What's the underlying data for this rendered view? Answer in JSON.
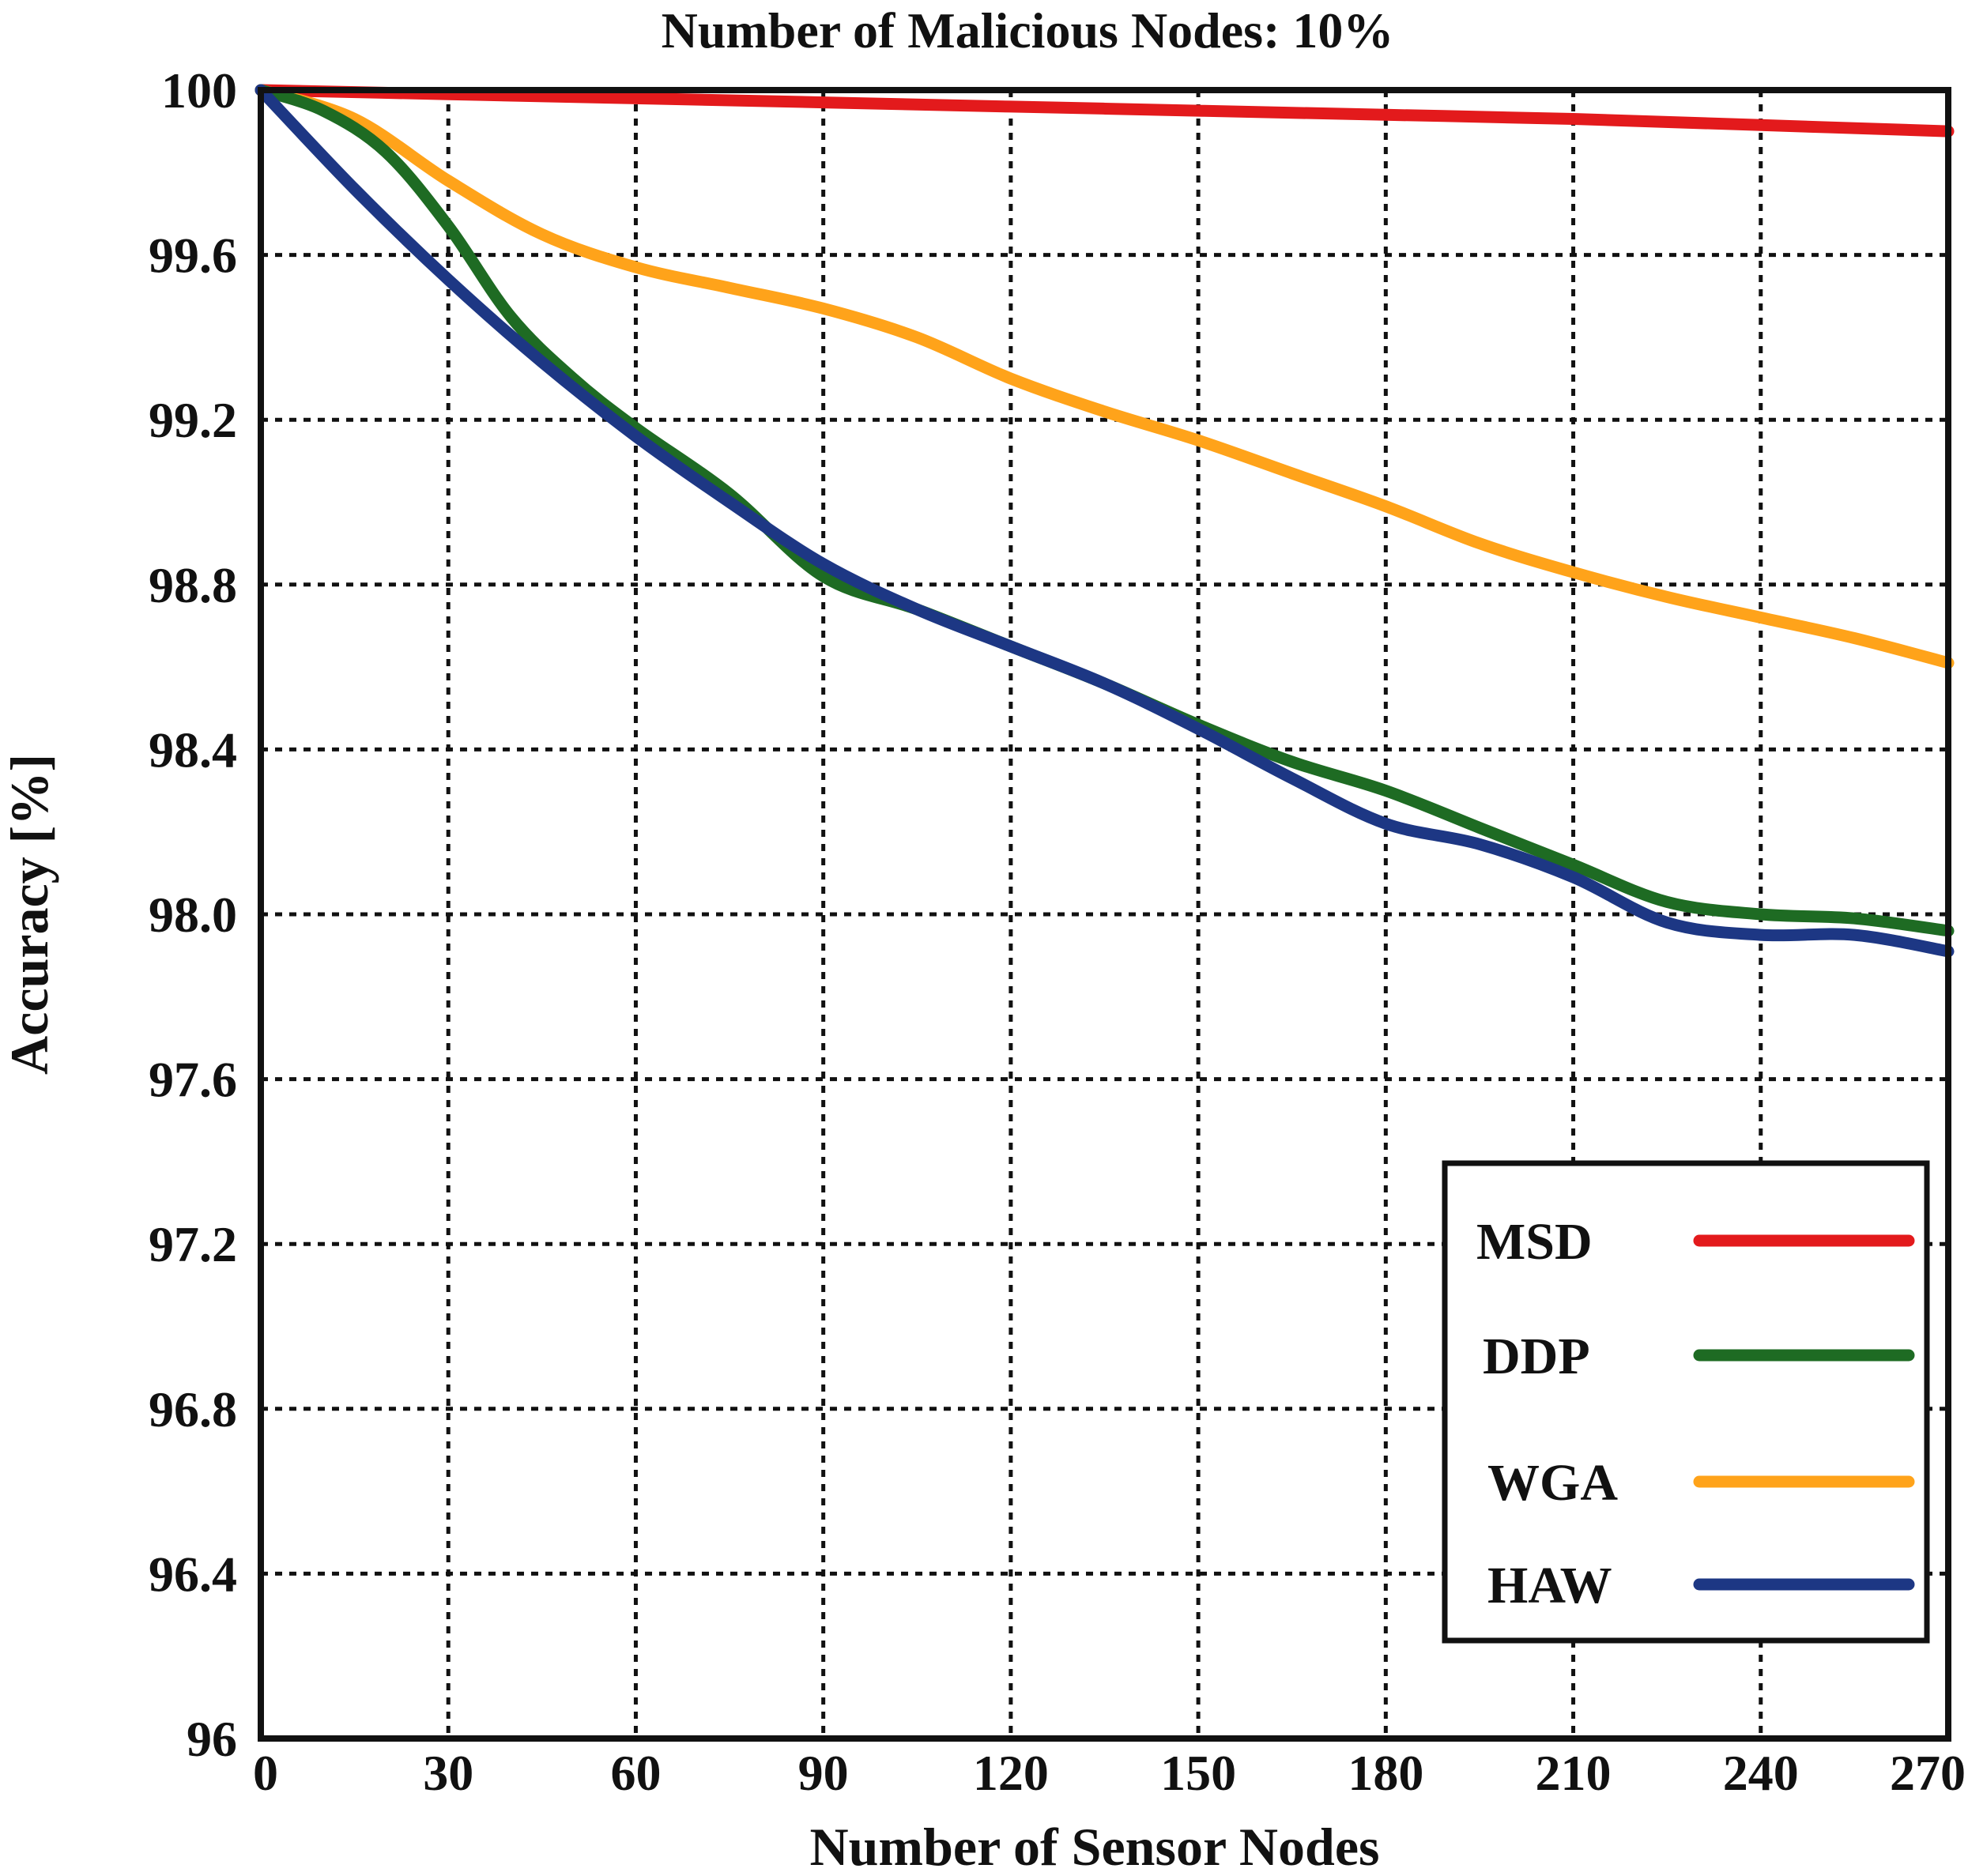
{
  "chart_data": {
    "type": "line",
    "title": "Number of Malicious Nodes: 10%",
    "xlabel": "Number of Sensor Nodes",
    "ylabel": "Accuracy [%]",
    "xlim": [
      0,
      270
    ],
    "ylim": [
      96,
      100
    ],
    "xticks": [
      0,
      30,
      60,
      90,
      120,
      150,
      180,
      210,
      240,
      270
    ],
    "xtick_labels": [
      "0",
      "30",
      "60",
      "90",
      "120",
      "150",
      "180",
      "210",
      "240",
      "270"
    ],
    "yticks": [
      96,
      96.4,
      96.8,
      97.2,
      97.6,
      98.0,
      98.4,
      98.8,
      99.2,
      99.6,
      100
    ],
    "ytick_labels": [
      "96",
      "96.4",
      "96.8",
      "97.2",
      "97.6",
      "98.0",
      "98.4",
      "98.8",
      "99.2",
      "99.6",
      "100"
    ],
    "grid": true,
    "legend_position": "bottom-right",
    "series": [
      {
        "name": "MSD",
        "color": "#e31a1c",
        "x": [
          0,
          30,
          60,
          90,
          120,
          150,
          180,
          210,
          240,
          270
        ],
        "values": [
          100,
          99.99,
          99.98,
          99.97,
          99.96,
          99.95,
          99.94,
          99.93,
          99.915,
          99.9
        ]
      },
      {
        "name": "DDP",
        "color": "#1e6b23",
        "x": [
          0,
          10,
          20,
          30,
          40,
          50,
          60,
          75,
          90,
          105,
          120,
          135,
          150,
          165,
          180,
          195,
          210,
          225,
          240,
          255,
          270
        ],
        "values": [
          100,
          99.95,
          99.85,
          99.67,
          99.45,
          99.3,
          99.18,
          99.02,
          98.82,
          98.74,
          98.65,
          98.56,
          98.46,
          98.37,
          98.3,
          98.21,
          98.12,
          98.03,
          98.0,
          97.99,
          97.96
        ]
      },
      {
        "name": "WGA",
        "color": "#ffa31a",
        "x": [
          0,
          15,
          30,
          45,
          60,
          75,
          90,
          105,
          120,
          135,
          150,
          165,
          180,
          195,
          210,
          225,
          240,
          255,
          270
        ],
        "values": [
          100,
          99.93,
          99.78,
          99.65,
          99.57,
          99.52,
          99.47,
          99.4,
          99.3,
          99.22,
          99.15,
          99.07,
          98.99,
          98.9,
          98.83,
          98.77,
          98.72,
          98.67,
          98.61
        ]
      },
      {
        "name": "HAW",
        "color": "#1d3784",
        "x": [
          0,
          15,
          30,
          45,
          60,
          75,
          90,
          105,
          120,
          135,
          150,
          165,
          180,
          195,
          210,
          225,
          240,
          255,
          270
        ],
        "values": [
          100,
          99.76,
          99.54,
          99.34,
          99.16,
          99.0,
          98.85,
          98.74,
          98.65,
          98.56,
          98.45,
          98.33,
          98.22,
          98.17,
          98.09,
          97.98,
          97.95,
          97.95,
          97.91
        ]
      }
    ]
  }
}
